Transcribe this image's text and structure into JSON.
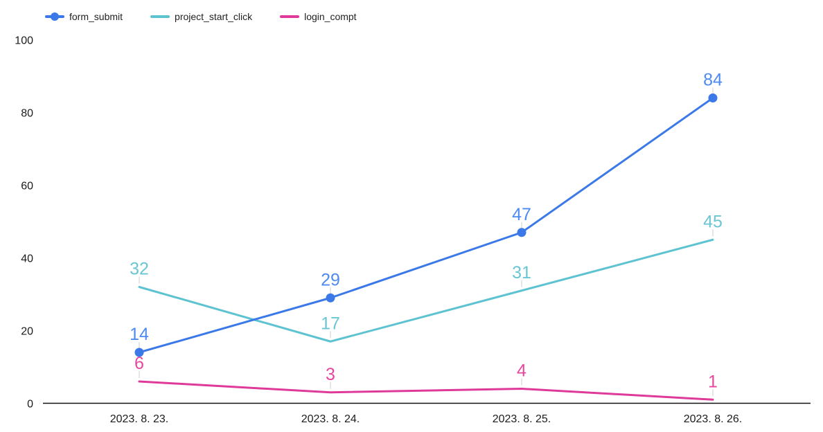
{
  "chart_data": {
    "type": "line",
    "title": "",
    "xlabel": "",
    "ylabel": "",
    "categories": [
      "2023. 8. 23.",
      "2023. 8. 24.",
      "2023. 8. 25.",
      "2023. 8. 26."
    ],
    "series": [
      {
        "name": "form_submit",
        "values": [
          14,
          29,
          47,
          84
        ],
        "color": "#3b79e8",
        "label_color": "#4e8af0",
        "point_marker": true
      },
      {
        "name": "project_start_click",
        "values": [
          32,
          17,
          31,
          45
        ],
        "color": "#5ec3d1",
        "label_color": "#6ac6d3",
        "point_marker": false
      },
      {
        "name": "login_compt",
        "values": [
          6,
          3,
          4,
          1
        ],
        "color": "#df399a",
        "label_color": "#e6479e",
        "point_marker": false
      }
    ],
    "ylim": [
      0,
      100
    ],
    "yticks": [
      0,
      20,
      40,
      60,
      80,
      100
    ],
    "grid": false,
    "legend_position": "top-left",
    "axis_color": "#111111",
    "callout_color": "#cccccc",
    "tick_label_color": "#1b1b1b"
  }
}
